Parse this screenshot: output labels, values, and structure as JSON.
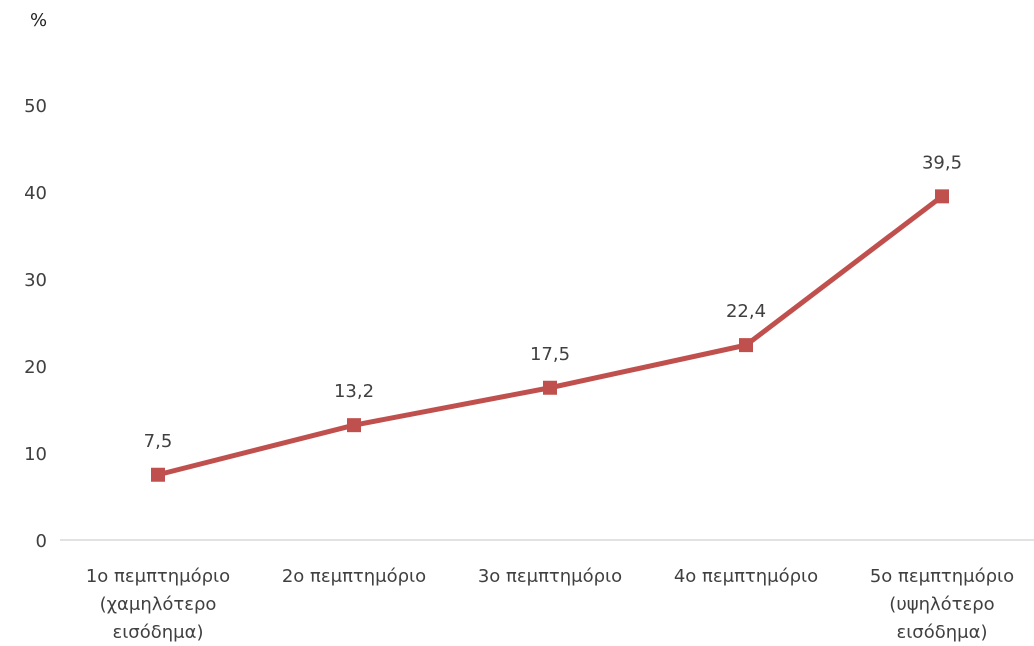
{
  "chart_data": {
    "type": "line",
    "ylabel": "%",
    "ylim": [
      0,
      50
    ],
    "yticks": [
      "0",
      "10",
      "20",
      "30",
      "40",
      "50"
    ],
    "categories": [
      [
        "1ο  πεμπτημόριο",
        "(χαμηλότερο",
        "εισόδημα)"
      ],
      [
        "2ο  πεμπτημόριο"
      ],
      [
        "3ο  πεμπτημόριο"
      ],
      [
        "4ο  πεμπτημόριο"
      ],
      [
        "5ο πεμπτημόριο",
        "(υψηλότερο",
        "εισόδημα)"
      ]
    ],
    "series": [
      {
        "values": [
          7.5,
          13.2,
          17.5,
          22.4,
          39.5
        ],
        "labels": [
          "7,5",
          "13,2",
          "17,5",
          "22,4",
          "39,5"
        ],
        "color": "#C0504D"
      }
    ],
    "grid": false,
    "legend": "none"
  }
}
